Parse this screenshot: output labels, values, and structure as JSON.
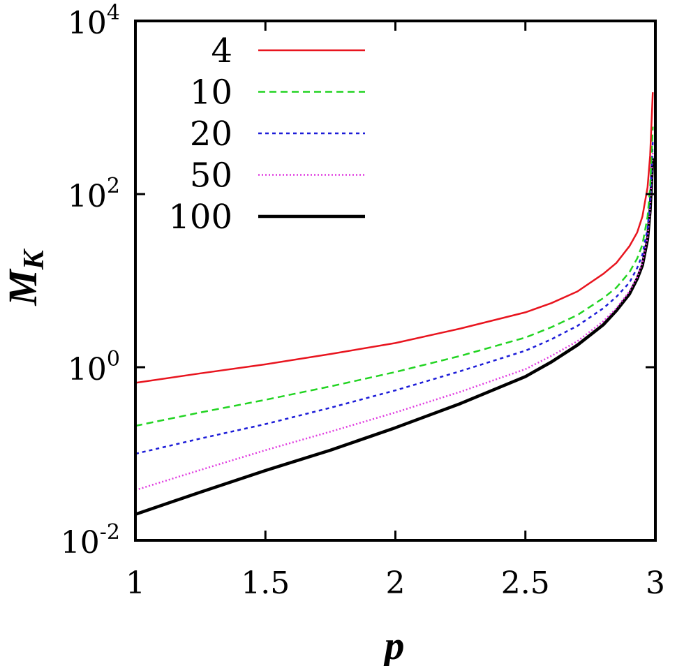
{
  "chart_data": {
    "type": "line",
    "xlabel": "p",
    "ylabel": "M",
    "ylabel_sub": "K",
    "xlim": [
      1,
      3
    ],
    "ylim": [
      0.01,
      10000
    ],
    "yscale": "log",
    "grid": false,
    "legend_position": "top-left",
    "x_ticks": [
      {
        "value": 1,
        "label": "1"
      },
      {
        "value": 1.5,
        "label": "1.5"
      },
      {
        "value": 2,
        "label": "2"
      },
      {
        "value": 2.5,
        "label": "2.5"
      },
      {
        "value": 3,
        "label": "3"
      }
    ],
    "y_ticks": [
      {
        "value": 0.01,
        "base": "10",
        "exp": "-2"
      },
      {
        "value": 1,
        "base": "10",
        "exp": "0"
      },
      {
        "value": 100,
        "base": "10",
        "exp": "2"
      },
      {
        "value": 10000,
        "base": "10",
        "exp": "4"
      }
    ],
    "series": [
      {
        "name": "4",
        "color": "#e8141e",
        "dash": "",
        "width": 2.5,
        "x": [
          1.0,
          1.25,
          1.5,
          1.75,
          2.0,
          2.25,
          2.5,
          2.6,
          2.7,
          2.8,
          2.85,
          2.9,
          2.93,
          2.95,
          2.97,
          2.98,
          2.99
        ],
        "y": [
          0.66,
          0.85,
          1.08,
          1.42,
          1.9,
          2.8,
          4.3,
          5.5,
          7.5,
          12,
          16,
          25,
          36,
          55,
          120,
          280,
          1500
        ]
      },
      {
        "name": "10",
        "color": "#22d422",
        "dash": "10,6",
        "width": 2.5,
        "x": [
          1.0,
          1.25,
          1.5,
          1.75,
          2.0,
          2.25,
          2.5,
          2.6,
          2.7,
          2.8,
          2.85,
          2.9,
          2.93,
          2.95,
          2.97,
          2.98,
          2.99
        ],
        "y": [
          0.21,
          0.3,
          0.42,
          0.6,
          0.88,
          1.35,
          2.2,
          2.9,
          4.0,
          6.3,
          8.3,
          12.5,
          18,
          26,
          55,
          120,
          600
        ]
      },
      {
        "name": "20",
        "color": "#1c1cd8",
        "dash": "5,5",
        "width": 2.5,
        "x": [
          1.0,
          1.25,
          1.5,
          1.75,
          2.0,
          2.25,
          2.5,
          2.6,
          2.7,
          2.8,
          2.85,
          2.9,
          2.93,
          2.95,
          2.97,
          2.98,
          2.99
        ],
        "y": [
          0.1,
          0.15,
          0.22,
          0.34,
          0.54,
          0.9,
          1.55,
          2.1,
          3.0,
          4.8,
          6.5,
          9.5,
          14,
          20,
          40,
          85,
          400
        ]
      },
      {
        "name": "50",
        "color": "#e03ce0",
        "dash": "2,3",
        "width": 2.5,
        "x": [
          1.0,
          1.25,
          1.5,
          1.75,
          2.0,
          2.25,
          2.5,
          2.6,
          2.7,
          2.8,
          2.85,
          2.9,
          2.93,
          2.95,
          2.97,
          2.98,
          2.99
        ],
        "y": [
          0.038,
          0.065,
          0.11,
          0.18,
          0.3,
          0.52,
          0.95,
          1.35,
          2.0,
          3.4,
          4.8,
          7.5,
          11,
          16,
          32,
          70,
          300
        ]
      },
      {
        "name": "100",
        "color": "#000000",
        "dash": "",
        "width": 4.5,
        "x": [
          1.0,
          1.25,
          1.5,
          1.75,
          2.0,
          2.25,
          2.5,
          2.6,
          2.7,
          2.8,
          2.85,
          2.9,
          2.93,
          2.95,
          2.97,
          2.98,
          2.99
        ],
        "y": [
          0.02,
          0.036,
          0.064,
          0.11,
          0.2,
          0.38,
          0.78,
          1.15,
          1.8,
          3.1,
          4.5,
          7.0,
          10.5,
          15,
          30,
          65,
          260
        ]
      }
    ]
  }
}
